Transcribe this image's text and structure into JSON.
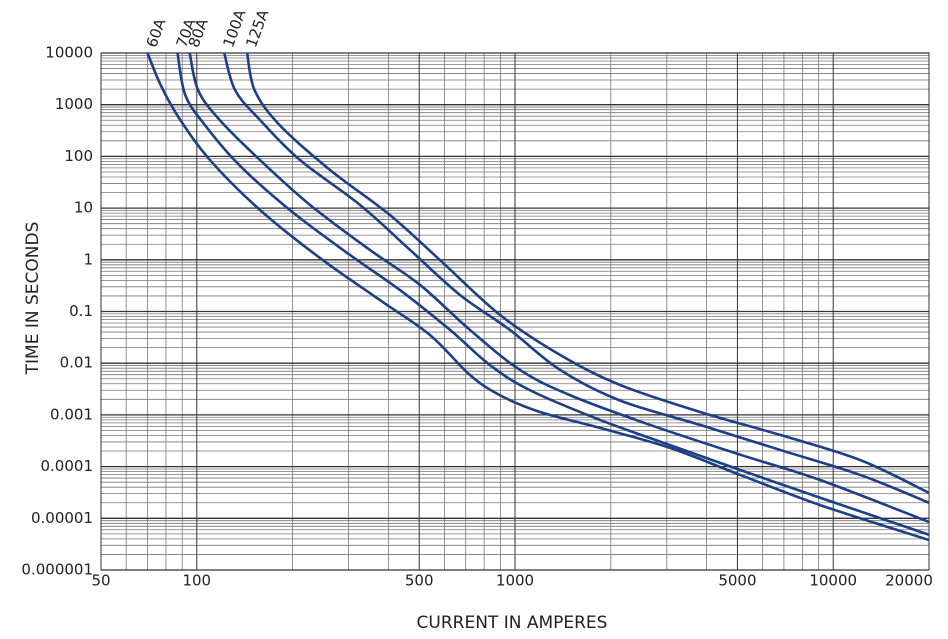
{
  "chart_data": {
    "type": "line",
    "xlabel": "CURRENT IN AMPERES",
    "ylabel": "TIME IN SECONDS",
    "log_x": true,
    "log_y": true,
    "grid": true,
    "xlim": [
      50,
      20000
    ],
    "ylim": [
      1e-06,
      10000
    ],
    "xticks": [
      50,
      100,
      500,
      1000,
      5000,
      10000,
      20000
    ],
    "yticks": [
      1e-06,
      1e-05,
      0.0001,
      0.001,
      0.01,
      0.1,
      1,
      10,
      100,
      1000,
      10000
    ],
    "xgrid": [
      60,
      70,
      80,
      90,
      200,
      300,
      400,
      600,
      700,
      800,
      900,
      2000,
      3000,
      4000,
      6000,
      7000,
      8000,
      9000
    ],
    "ygrid": [
      2e-06,
      3e-06,
      4e-06,
      5e-06,
      6e-06,
      7e-06,
      8e-06,
      9e-06,
      2e-05,
      3e-05,
      4e-05,
      5e-05,
      6e-05,
      7e-05,
      8e-05,
      9e-05,
      0.0002,
      0.0003,
      0.0004,
      0.0005,
      0.0006,
      0.0007,
      0.0008,
      0.0009,
      0.002,
      0.003,
      0.004,
      0.005,
      0.006,
      0.007,
      0.008,
      0.009,
      0.02,
      0.03,
      0.04,
      0.05,
      0.06,
      0.07,
      0.08,
      0.09,
      0.2,
      0.3,
      0.4,
      0.5,
      0.6,
      0.7,
      0.8,
      0.9,
      2,
      3,
      4,
      5,
      6,
      7,
      8,
      9,
      20,
      30,
      40,
      50,
      60,
      70,
      80,
      90,
      200,
      300,
      400,
      500,
      600,
      700,
      800,
      900,
      2000,
      3000,
      4000,
      5000,
      6000,
      7000,
      8000,
      9000
    ],
    "series": [
      {
        "name": "60A",
        "color": "#1d3f86",
        "x": [
          70,
          77,
          88,
          110,
          158,
          244,
          376,
          541,
          722,
          897,
          1199,
          1850,
          3070,
          5103,
          9100,
          20000
        ],
        "values": [
          10000,
          2400,
          550,
          85,
          9.2,
          1.08,
          0.167,
          0.035,
          0.0059,
          0.0024,
          0.00114,
          0.00056,
          0.00023,
          6.9e-05,
          1.8e-05,
          3.8e-06
        ]
      },
      {
        "name": "70A",
        "color": "#1d3f86",
        "x": [
          87,
          92,
          106,
          136,
          196,
          303,
          435,
          625,
          834,
          1115,
          1850,
          3070,
          5103,
          9100,
          20000
        ],
        "values": [
          10000,
          1540,
          405,
          68,
          9.2,
          1.24,
          0.26,
          0.044,
          0.0092,
          0.003,
          0.0008,
          0.00026,
          8.6e-05,
          2.5e-05,
          4.8e-06
        ]
      },
      {
        "name": "80A",
        "color": "#1d3f86",
        "x": [
          95,
          101,
          118,
          158,
          227,
          350,
          502,
          722,
          1037,
          1491,
          2660,
          5103,
          9100,
          20000
        ],
        "values": [
          10000,
          1900,
          506,
          85,
          11.5,
          1.55,
          0.33,
          0.044,
          0.0074,
          0.0024,
          0.00064,
          0.00017,
          5.5e-05,
          8.5e-06
        ]
      },
      {
        "name": "100A",
        "color": "#1d3f86",
        "x": [
          122,
          132,
          158,
          211,
          326,
          468,
          671,
          964,
          1387,
          2138,
          3817,
          6810,
          12160,
          20000
        ],
        "values": [
          10000,
          1900,
          506,
          85,
          11.5,
          1.55,
          0.21,
          0.044,
          0.0074,
          0.0019,
          0.00064,
          0.00021,
          6.9e-05,
          2e-05
        ]
      },
      {
        "name": "125A",
        "color": "#1d3f86",
        "x": [
          144,
          152,
          182,
          262,
          404,
          581,
          897,
          1387,
          2138,
          3817,
          6810,
          12160,
          20000
        ],
        "values": [
          10000,
          1900,
          405,
          55,
          7.4,
          0.99,
          0.086,
          0.0144,
          0.0038,
          0.00114,
          0.00041,
          0.000134,
          3.1e-05
        ]
      }
    ]
  }
}
